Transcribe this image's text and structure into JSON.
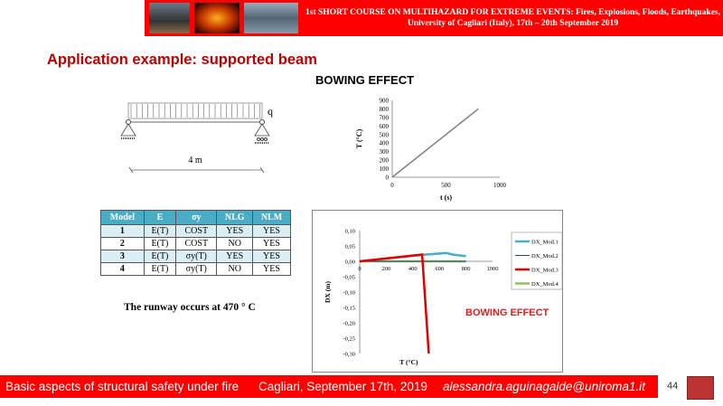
{
  "header": {
    "line1": "1st SHORT COURSE ON MULTIHAZARD FOR EXTREME EVENTS: Fires, Explosions, Floods, Earthquakes,",
    "line2": "University of Cagliari (Italy), 17th – 20th September 2019"
  },
  "title": "Application example: supported beam",
  "bowing_title": "BOWING EFFECT",
  "beam": {
    "load_label": "q",
    "span_label": "4 m"
  },
  "table": {
    "headers": [
      "Model",
      "E",
      "σy",
      "NLG",
      "NLM"
    ],
    "rows": [
      [
        "1",
        "E(T)",
        "COST",
        "YES",
        "YES"
      ],
      [
        "2",
        "E(T)",
        "COST",
        "NO",
        "YES"
      ],
      [
        "3",
        "E(T)",
        "σy(T)",
        "YES",
        "YES"
      ],
      [
        "4",
        "E(T)",
        "σy(T)",
        "NO",
        "YES"
      ]
    ]
  },
  "runway_text": "The runway occurs at 470 °   C",
  "bowing_label": "BOWING EFFECT",
  "footer": {
    "course": "Basic aspects of structural safety under fire",
    "place_date": "Cagliari, September 17th, 2019",
    "email": "alessandra.aguinagalde@uniroma1.it",
    "page": "44"
  },
  "chart_data": [
    {
      "type": "line",
      "xlabel": "t (s)",
      "ylabel": "T (°C)",
      "xlim": [
        0,
        1000
      ],
      "ylim": [
        0,
        900
      ],
      "xticks": [
        0,
        500,
        1000
      ],
      "yticks": [
        0,
        100,
        200,
        300,
        400,
        500,
        600,
        700,
        800,
        900
      ],
      "series": [
        {
          "x": [
            0,
            800
          ],
          "y": [
            0,
            800
          ],
          "color": "#808080"
        }
      ]
    },
    {
      "type": "line",
      "xlabel": "T (°C)",
      "ylabel": "DX (m)",
      "xlim": [
        0,
        1000
      ],
      "ylim": [
        -0.3,
        0.1
      ],
      "xticks": [
        0,
        200,
        400,
        600,
        800,
        1000
      ],
      "yticks": [
        "0,10",
        "0,05",
        "0,00",
        "-0,05",
        "-0,10",
        "-0,15",
        "-0,20",
        "-0,25",
        "-0,30"
      ],
      "legend": "right",
      "series": [
        {
          "name": "DX_Mod.1",
          "color": "#4bacc6",
          "width": 2.5,
          "x": [
            0,
            470,
            650,
            700,
            800
          ],
          "y": [
            0,
            0.021,
            0.027,
            0.022,
            0.017
          ]
        },
        {
          "name": "DX_Mod.2",
          "color": "#1f497d",
          "width": 1,
          "x": [
            0,
            800
          ],
          "y": [
            0,
            0
          ]
        },
        {
          "name": "DX_Mod.3",
          "color": "#e00000",
          "width": 2.5,
          "x": [
            0,
            470,
            520
          ],
          "y": [
            0,
            0.022,
            -0.3
          ]
        },
        {
          "name": "DX_Mod.4",
          "color": "#9bbb59",
          "width": 2.5,
          "x": [
            0,
            800
          ],
          "y": [
            0,
            0
          ]
        }
      ]
    }
  ]
}
